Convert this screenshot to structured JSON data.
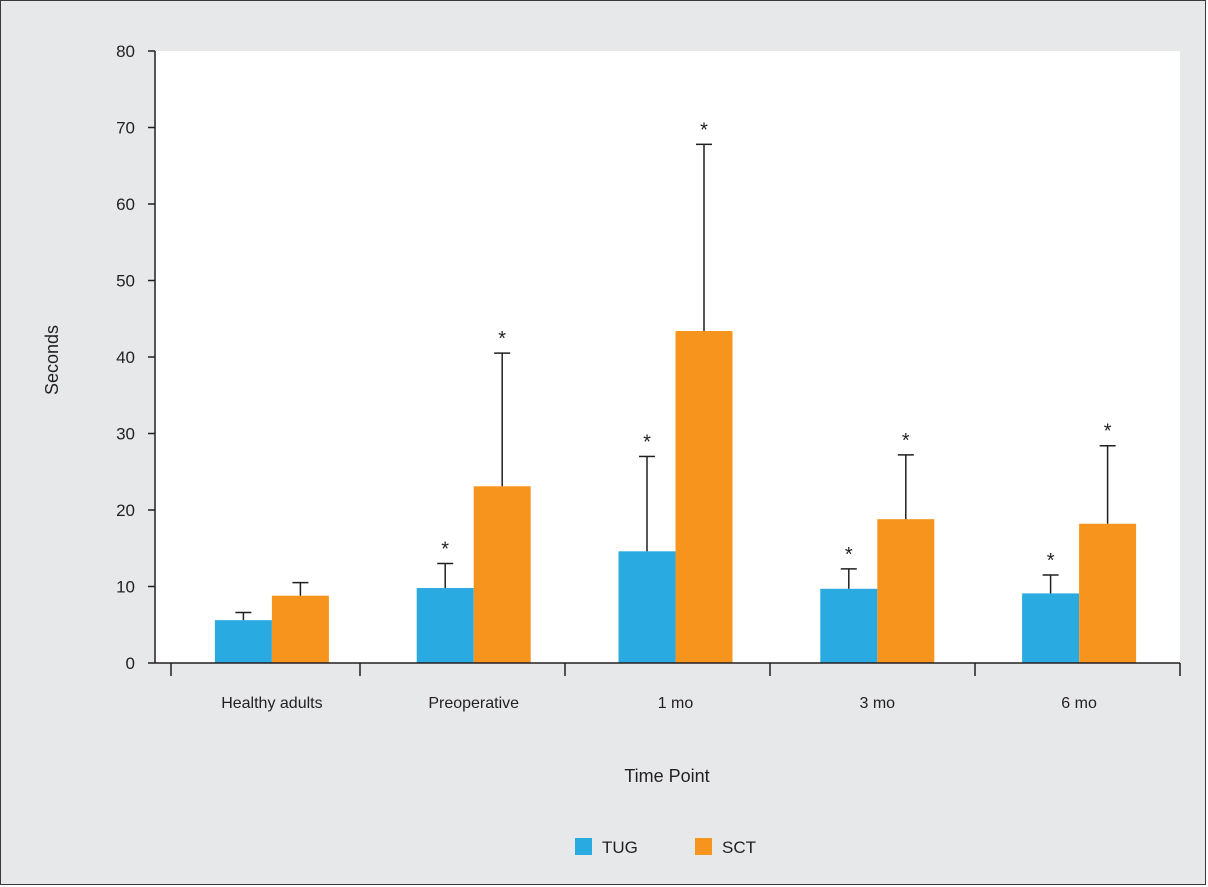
{
  "chart_data": {
    "type": "bar",
    "title": "",
    "xlabel": "Time Point",
    "ylabel": "Seconds",
    "ylim": [
      0,
      80
    ],
    "yticks": [
      0,
      10,
      20,
      30,
      40,
      50,
      60,
      70,
      80
    ],
    "grid": false,
    "legend_position": "bottom-center",
    "categories": [
      "Healthy adults",
      "Preoperative",
      "1 mo",
      "3 mo",
      "6 mo"
    ],
    "series": [
      {
        "name": "TUG",
        "color": "#29abe2",
        "values": [
          5.6,
          9.8,
          14.6,
          9.7,
          9.1
        ],
        "error_upper": [
          6.6,
          13.0,
          27.0,
          12.3,
          11.5
        ],
        "significant": [
          false,
          true,
          true,
          true,
          true
        ]
      },
      {
        "name": "SCT",
        "color": "#f7941d",
        "values": [
          8.8,
          23.1,
          43.4,
          18.8,
          18.2
        ],
        "error_upper": [
          10.5,
          40.5,
          67.8,
          27.2,
          28.4
        ],
        "significant": [
          false,
          true,
          true,
          true,
          true
        ]
      }
    ],
    "significance_marker": "*"
  }
}
